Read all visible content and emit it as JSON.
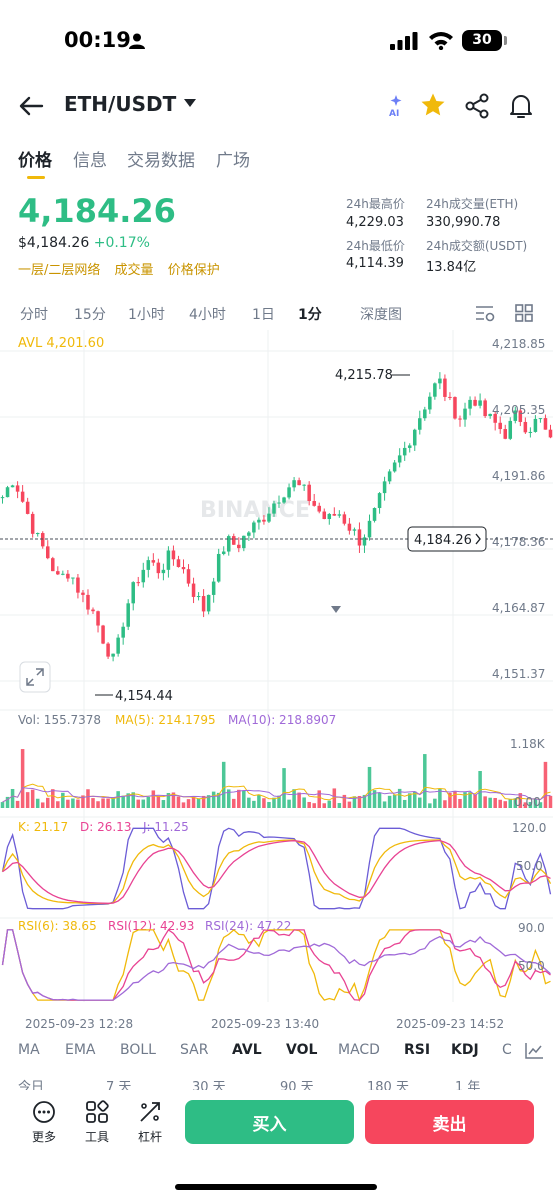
{
  "status_bar": {
    "time": "00:19",
    "battery": "30"
  },
  "header": {
    "pair": "ETH/USDT",
    "ai_label": "AI"
  },
  "tabs": [
    "价格",
    "信息",
    "交易数据",
    "广场"
  ],
  "price": {
    "last": "4,184.26",
    "usd": "$4,184.26",
    "change": "+0.17%",
    "links": [
      "一层/二层网络",
      "成交量",
      "价格保护"
    ]
  },
  "stats": {
    "high_label": "24h最高价",
    "high": "4,229.03",
    "low_label": "24h最低价",
    "low": "4,114.39",
    "vol_eth_label": "24h成交量(ETH)",
    "vol_eth": "330,990.78",
    "vol_usdt_label": "24h成交额(USDT)",
    "vol_usdt": "13.84亿"
  },
  "intervals": [
    "分时",
    "15分",
    "1小时",
    "4小时",
    "1日",
    "1分",
    "深度图"
  ],
  "chart": {
    "avl_label": "AVL 4,201.60",
    "watermark": "BINANCE",
    "current_price_tag": "4,184.26",
    "high_marker": "4,215.78",
    "low_marker": "4,154.44",
    "price_ticks": [
      "4,218.85",
      "4,205.35",
      "4,191.86",
      "4,178.36",
      "4,164.87",
      "4,151.37"
    ],
    "vol_header": {
      "vol": "Vol: 155.7378",
      "ma5": "MA(5): 214.1795",
      "ma10": "MA(10): 218.8907"
    },
    "vol_ticks": [
      "1.18K",
      "0.00"
    ],
    "kdj_header": {
      "k": "K: 21.17",
      "d": "D: 26.13",
      "j": "J: 11.25"
    },
    "kdj_ticks": [
      "120.0",
      "50.0"
    ],
    "rsi_header": {
      "r6": "RSI(6): 38.65",
      "r12": "RSI(12): 42.93",
      "r24": "RSI(24): 47.22"
    },
    "rsi_ticks": [
      "90.0",
      "50.0"
    ],
    "time_labels": [
      "2025-09-23 12:28",
      "2025-09-23 13:40",
      "2025-09-23 14:52"
    ],
    "colors": {
      "up": "#2ebd85",
      "down": "#f6465d",
      "ma5": "#f0b90b",
      "ma10": "#a06ad8",
      "j": "#6b5cd6"
    }
  },
  "chart_data": {
    "type": "candlestick",
    "y_range": [
      4151.37,
      4218.85
    ],
    "y_ticks": [
      4218.85,
      4205.35,
      4191.86,
      4178.36,
      4164.87,
      4151.37
    ],
    "current": 4184.26,
    "high": 4215.78,
    "low": 4154.44,
    "avl": 4201.6,
    "x_ticks": [
      "2025-09-23 12:28",
      "2025-09-23 13:40",
      "2025-09-23 14:52"
    ],
    "close_path": [
      4189,
      4193,
      4187,
      4181,
      4177,
      4172,
      4174,
      4169,
      4166,
      4160,
      4155,
      4166,
      4172,
      4176,
      4174,
      4177,
      4175,
      4170,
      4166,
      4174,
      4180,
      4179,
      4182,
      4184,
      4187,
      4190,
      4192,
      4190,
      4187,
      4184,
      4186,
      4183,
      4180,
      4184,
      4190,
      4195,
      4199,
      4204,
      4209,
      4213,
      4208,
      4205,
      4210,
      4206,
      4204,
      4202,
      4206,
      4203,
      4205,
      4200
    ]
  },
  "indicator_tabs": [
    "MA",
    "EMA",
    "BOLL",
    "SAR",
    "AVL",
    "VOL",
    "MACD",
    "RSI",
    "KDJ",
    "C"
  ],
  "range_tabs": [
    "今日",
    "7 天",
    "30 天",
    "90 天",
    "180 天",
    "1 年"
  ],
  "bottom": {
    "more": "更多",
    "tools": "工具",
    "leverage": "杠杆",
    "buy": "买入",
    "sell": "卖出"
  }
}
